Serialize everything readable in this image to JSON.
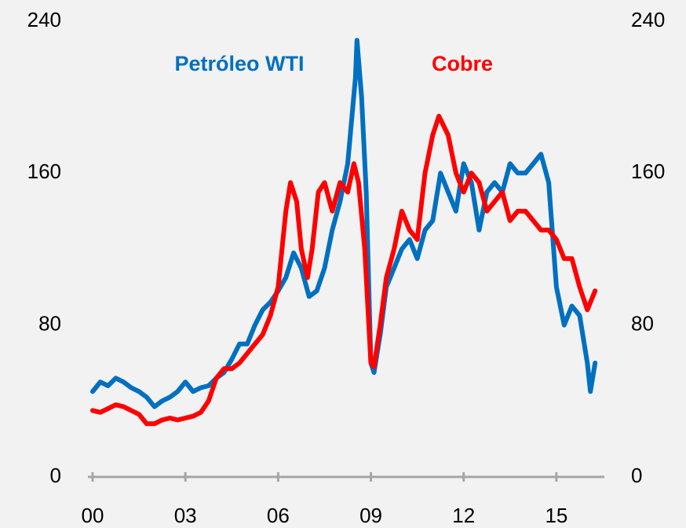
{
  "chart_data": {
    "type": "line",
    "xlim": [
      0,
      16.5
    ],
    "xticks": [
      {
        "value": 0,
        "label": "00"
      },
      {
        "value": 3,
        "label": "03"
      },
      {
        "value": 6,
        "label": "06"
      },
      {
        "value": 9,
        "label": "09"
      },
      {
        "value": 12,
        "label": "12"
      },
      {
        "value": 15,
        "label": "15"
      }
    ],
    "ylim": [
      0,
      240
    ],
    "yticks": [
      0,
      80,
      160,
      240
    ],
    "y2lim": [
      0,
      240
    ],
    "y2ticks": [
      0,
      80,
      160,
      240
    ],
    "series": [
      {
        "name": "Petróleo WTI",
        "color": "#0070c0",
        "x": [
          0,
          0.25,
          0.5,
          0.75,
          1.0,
          1.25,
          1.5,
          1.75,
          2.0,
          2.25,
          2.5,
          2.75,
          3.0,
          3.25,
          3.5,
          3.75,
          4.0,
          4.25,
          4.5,
          4.75,
          5.0,
          5.25,
          5.5,
          5.75,
          6.0,
          6.25,
          6.5,
          6.75,
          7.0,
          7.25,
          7.5,
          7.75,
          8.0,
          8.25,
          8.5,
          8.55,
          8.7,
          8.85,
          9.0,
          9.1,
          9.3,
          9.5,
          9.75,
          10.0,
          10.25,
          10.5,
          10.75,
          11.0,
          11.25,
          11.5,
          11.75,
          12.0,
          12.25,
          12.5,
          12.75,
          13.0,
          13.25,
          13.5,
          13.75,
          14.0,
          14.25,
          14.5,
          14.75,
          15.0,
          15.25,
          15.5,
          15.75,
          16.0,
          16.1,
          16.25
        ],
        "values": [
          45,
          50,
          48,
          52,
          50,
          47,
          45,
          42,
          37,
          40,
          42,
          45,
          50,
          45,
          47,
          48,
          52,
          55,
          62,
          70,
          70,
          80,
          88,
          92,
          98,
          105,
          118,
          110,
          95,
          98,
          110,
          130,
          145,
          165,
          210,
          230,
          200,
          150,
          60,
          55,
          75,
          100,
          110,
          120,
          125,
          115,
          130,
          135,
          160,
          150,
          140,
          165,
          155,
          130,
          150,
          155,
          150,
          165,
          160,
          160,
          165,
          170,
          155,
          100,
          80,
          90,
          85,
          60,
          45,
          60
        ]
      },
      {
        "name": "Cobre",
        "color": "#ff0000",
        "axis": "y2",
        "x": [
          0,
          0.25,
          0.5,
          0.75,
          1.0,
          1.25,
          1.5,
          1.75,
          2.0,
          2.25,
          2.5,
          2.75,
          3.0,
          3.25,
          3.5,
          3.75,
          4.0,
          4.25,
          4.5,
          4.75,
          5.0,
          5.25,
          5.5,
          5.75,
          6.0,
          6.25,
          6.4,
          6.6,
          6.75,
          6.95,
          7.1,
          7.3,
          7.5,
          7.75,
          8.0,
          8.25,
          8.45,
          8.6,
          8.8,
          9.0,
          9.1,
          9.3,
          9.5,
          9.75,
          10.0,
          10.25,
          10.5,
          10.75,
          11.0,
          11.2,
          11.5,
          11.75,
          12.0,
          12.25,
          12.5,
          12.75,
          13.0,
          13.25,
          13.5,
          13.75,
          14.0,
          14.25,
          14.5,
          14.75,
          15.0,
          15.25,
          15.5,
          15.75,
          16.0,
          16.25
        ],
        "values": [
          35,
          34,
          36,
          38,
          37,
          35,
          33,
          28,
          28,
          30,
          31,
          30,
          31,
          32,
          34,
          40,
          52,
          57,
          57,
          60,
          65,
          70,
          75,
          85,
          100,
          140,
          155,
          145,
          120,
          105,
          120,
          150,
          155,
          140,
          155,
          150,
          165,
          155,
          120,
          60,
          58,
          80,
          105,
          120,
          140,
          130,
          125,
          160,
          180,
          190,
          180,
          160,
          150,
          160,
          155,
          140,
          145,
          150,
          135,
          140,
          140,
          135,
          130,
          130,
          125,
          115,
          115,
          100,
          88,
          98
        ]
      }
    ]
  }
}
